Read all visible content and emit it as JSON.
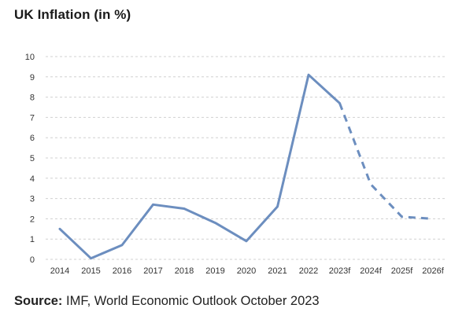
{
  "title": "UK Inflation (in %)",
  "source": {
    "label": "Source:",
    "text": " IMF, World Economic Outlook October 2023"
  },
  "colors": {
    "line": "#6c8ebf",
    "grid": "#d0d0d0",
    "text": "#333333"
  },
  "chart_data": {
    "type": "line",
    "title": "UK Inflation (in %)",
    "xlabel": "",
    "ylabel": "",
    "categories": [
      "2014",
      "2015",
      "2016",
      "2017",
      "2018",
      "2019",
      "2020",
      "2021",
      "2022",
      "2023f",
      "2024f",
      "2025f",
      "2026f"
    ],
    "series": [
      {
        "values": [
          1.5,
          0.05,
          0.7,
          2.7,
          2.5,
          1.8,
          0.9,
          2.6,
          9.1,
          7.7,
          3.7,
          2.1,
          2.0
        ],
        "style": "solid through 2023f, dashed for forecast years",
        "dashed_from": "2023f",
        "color": "#6c8ebf"
      }
    ],
    "ylim": [
      0,
      10
    ],
    "yticks": [
      0,
      1,
      2,
      3,
      4,
      5,
      6,
      7,
      8,
      9,
      10
    ],
    "grid": "horizontal dashed",
    "legend": "none"
  }
}
